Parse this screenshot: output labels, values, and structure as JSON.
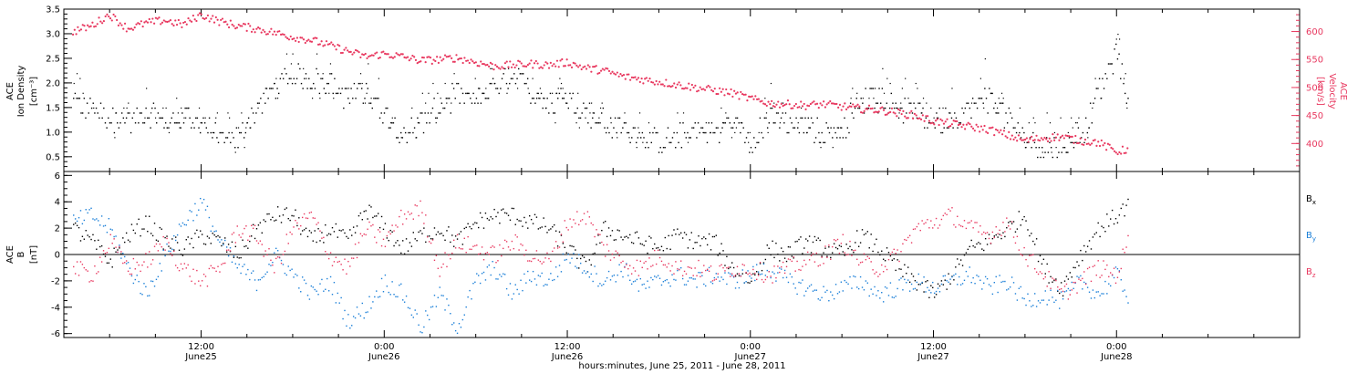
{
  "figure": {
    "xlabel": "hours:minutes, June 25, 2011 - June 28, 2011",
    "xticks": [
      {
        "day": 0.5,
        "time": "12:00",
        "date": "June25"
      },
      {
        "day": 1.0,
        "time": "0:00",
        "date": "June26"
      },
      {
        "day": 1.5,
        "time": "12:00",
        "date": "June26"
      },
      {
        "day": 2.0,
        "time": "0:00",
        "date": "June27"
      },
      {
        "day": 2.5,
        "time": "12:00",
        "date": "June27"
      },
      {
        "day": 3.0,
        "time": "0:00",
        "date": "June28"
      }
    ],
    "xlim_days": [
      0.125,
      3.5
    ]
  },
  "chart_data": [
    {
      "type": "scatter",
      "panel": "top",
      "ylabel": {
        "line1": "ACE",
        "line2": "Ion Density",
        "units": "[cm⁻³]"
      },
      "ylabel_right": {
        "line1": "ACE",
        "line2": "Velocity",
        "units": "[km/s]"
      },
      "ylim": [
        0.2,
        3.5
      ],
      "yticks": [
        0.5,
        1.0,
        1.5,
        2.0,
        2.5,
        3.0,
        3.5
      ],
      "yticks_labels": [
        "0.5",
        "1.0",
        "1.5",
        "2.0",
        "2.5",
        "3.0",
        "3.5"
      ],
      "y2lim": [
        350,
        640
      ],
      "y2ticks": [
        400,
        450,
        500,
        550,
        600
      ],
      "y2ticks_labels": [
        "400",
        "450",
        "500",
        "550",
        "600"
      ],
      "series": [
        {
          "name": "Ion Density",
          "axis": "left",
          "color": "#000000",
          "x": [
            0.15,
            0.2,
            0.25,
            0.3,
            0.35,
            0.4,
            0.45,
            0.5,
            0.55,
            0.6,
            0.65,
            0.7,
            0.75,
            0.8,
            0.85,
            0.9,
            0.95,
            1.0,
            1.05,
            1.1,
            1.15,
            1.2,
            1.25,
            1.3,
            1.35,
            1.4,
            1.45,
            1.5,
            1.55,
            1.6,
            1.65,
            1.7,
            1.75,
            1.8,
            1.85,
            1.9,
            1.95,
            2.0,
            2.05,
            2.1,
            2.15,
            2.2,
            2.25,
            2.3,
            2.35,
            2.4,
            2.45,
            2.5,
            2.55,
            2.6,
            2.65,
            2.7,
            2.75,
            2.8,
            2.85,
            2.9,
            2.95,
            3.0,
            3.03
          ],
          "y": [
            1.6,
            1.5,
            1.3,
            1.2,
            1.4,
            1.2,
            1.3,
            1.2,
            0.9,
            0.85,
            1.5,
            1.9,
            2.2,
            2.1,
            2.0,
            1.7,
            1.8,
            1.4,
            1.0,
            1.2,
            1.5,
            1.8,
            1.6,
            1.9,
            2.2,
            1.8,
            1.6,
            1.7,
            1.4,
            1.2,
            1.1,
            1.0,
            0.8,
            0.9,
            1.1,
            1.0,
            1.2,
            0.8,
            1.3,
            1.2,
            1.1,
            1.0,
            1.1,
            1.6,
            1.8,
            1.5,
            1.4,
            1.2,
            1.3,
            1.5,
            1.7,
            1.3,
            0.9,
            0.7,
            0.75,
            0.9,
            1.8,
            2.6,
            1.6
          ]
        },
        {
          "name": "Velocity",
          "axis": "right",
          "color": "#e8385f",
          "x": [
            0.15,
            0.2,
            0.25,
            0.3,
            0.35,
            0.4,
            0.45,
            0.5,
            0.55,
            0.6,
            0.65,
            0.7,
            0.75,
            0.8,
            0.85,
            0.9,
            0.95,
            1.0,
            1.05,
            1.1,
            1.15,
            1.2,
            1.25,
            1.3,
            1.35,
            1.4,
            1.45,
            1.5,
            1.55,
            1.6,
            1.65,
            1.7,
            1.75,
            1.8,
            1.85,
            1.9,
            1.95,
            2.0,
            2.05,
            2.1,
            2.15,
            2.2,
            2.25,
            2.3,
            2.35,
            2.4,
            2.45,
            2.5,
            2.55,
            2.6,
            2.65,
            2.7,
            2.75,
            2.8,
            2.85,
            2.9,
            2.95,
            3.0,
            3.03
          ],
          "y": [
            600,
            610,
            630,
            605,
            615,
            620,
            612,
            630,
            618,
            610,
            605,
            598,
            590,
            585,
            575,
            565,
            555,
            560,
            555,
            548,
            550,
            553,
            545,
            538,
            540,
            542,
            540,
            545,
            535,
            530,
            520,
            515,
            510,
            505,
            500,
            495,
            490,
            480,
            472,
            470,
            468,
            470,
            466,
            462,
            460,
            455,
            450,
            440,
            435,
            430,
            425,
            415,
            405,
            410,
            412,
            405,
            402,
            385,
            390
          ]
        }
      ]
    },
    {
      "type": "scatter",
      "panel": "bottom",
      "ylabel": {
        "line1": "ACE",
        "line2": "B",
        "units": "[nT]"
      },
      "ylim": [
        -6.3,
        6.3
      ],
      "yticks": [
        -6,
        -4,
        -2,
        0,
        2,
        4,
        6
      ],
      "yticks_labels": [
        "-6",
        "-4",
        "-2",
        "0",
        "2",
        "4",
        "6"
      ],
      "series": [
        {
          "name": "Bx",
          "color": "#000000",
          "x": [
            0.15,
            0.2,
            0.25,
            0.3,
            0.35,
            0.4,
            0.45,
            0.5,
            0.55,
            0.6,
            0.65,
            0.7,
            0.75,
            0.8,
            0.85,
            0.9,
            0.95,
            1.0,
            1.05,
            1.1,
            1.15,
            1.2,
            1.25,
            1.3,
            1.35,
            1.4,
            1.45,
            1.5,
            1.55,
            1.6,
            1.65,
            1.7,
            1.75,
            1.8,
            1.85,
            1.9,
            1.95,
            2.0,
            2.05,
            2.1,
            2.15,
            2.2,
            2.25,
            2.3,
            2.35,
            2.4,
            2.45,
            2.5,
            2.55,
            2.6,
            2.65,
            2.7,
            2.75,
            2.8,
            2.85,
            2.9,
            2.95,
            3.0,
            3.03
          ],
          "y": [
            2.0,
            1.0,
            -0.5,
            1.5,
            2.5,
            1.0,
            0.5,
            1.5,
            1.0,
            0.0,
            2.0,
            3.0,
            3.0,
            1.0,
            2.0,
            1.0,
            3.5,
            2.0,
            0.5,
            1.5,
            2.0,
            1.0,
            2.5,
            3.0,
            3.0,
            2.5,
            2.0,
            0.5,
            -1.0,
            2.0,
            1.5,
            1.0,
            0.5,
            1.5,
            1.0,
            1.0,
            -1.0,
            -2.0,
            0.5,
            0.0,
            1.0,
            0.5,
            0.0,
            1.5,
            0.5,
            -1.0,
            -2.0,
            -3.0,
            -1.5,
            0.5,
            1.0,
            2.0,
            3.0,
            -1.0,
            -2.5,
            0.0,
            2.0,
            3.0,
            3.8
          ]
        },
        {
          "name": "By",
          "color": "#1a7fd8",
          "x": [
            0.15,
            0.2,
            0.25,
            0.3,
            0.35,
            0.4,
            0.45,
            0.5,
            0.55,
            0.6,
            0.65,
            0.7,
            0.75,
            0.8,
            0.85,
            0.9,
            0.95,
            1.0,
            1.05,
            1.1,
            1.15,
            1.2,
            1.25,
            1.3,
            1.35,
            1.4,
            1.45,
            1.5,
            1.55,
            1.6,
            1.65,
            1.7,
            1.75,
            1.8,
            1.85,
            1.9,
            1.95,
            2.0,
            2.05,
            2.1,
            2.15,
            2.2,
            2.25,
            2.3,
            2.35,
            2.4,
            2.45,
            2.5,
            2.55,
            2.6,
            2.65,
            2.7,
            2.75,
            2.8,
            2.85,
            2.9,
            2.95,
            3.0,
            3.03
          ],
          "y": [
            2.5,
            3.0,
            2.0,
            -1.0,
            -3.0,
            0.0,
            2.5,
            4.0,
            1.0,
            -1.0,
            -2.0,
            0.0,
            -1.5,
            -3.0,
            -2.0,
            -5.0,
            -4.0,
            -2.0,
            -3.0,
            -5.5,
            -3.0,
            -5.5,
            -2.0,
            -1.0,
            -3.0,
            -1.5,
            -2.0,
            0.0,
            -1.0,
            -2.0,
            -1.0,
            -2.5,
            -2.0,
            -1.5,
            -2.0,
            -1.5,
            -2.0,
            -1.5,
            -1.0,
            -2.0,
            -2.5,
            -3.0,
            -2.5,
            -2.0,
            -3.0,
            -2.5,
            -2.0,
            -2.5,
            -2.0,
            -1.5,
            -2.5,
            -2.0,
            -3.5,
            -3.0,
            -3.5,
            -2.0,
            -3.0,
            -1.5,
            -3.0
          ]
        },
        {
          "name": "Bz",
          "color": "#e8385f",
          "x": [
            0.15,
            0.2,
            0.25,
            0.3,
            0.35,
            0.4,
            0.45,
            0.5,
            0.55,
            0.6,
            0.65,
            0.7,
            0.75,
            0.8,
            0.85,
            0.9,
            0.95,
            1.0,
            1.05,
            1.1,
            1.15,
            1.2,
            1.25,
            1.3,
            1.35,
            1.4,
            1.45,
            1.5,
            1.55,
            1.6,
            1.65,
            1.7,
            1.75,
            1.8,
            1.85,
            1.9,
            1.95,
            2.0,
            2.05,
            2.1,
            2.15,
            2.2,
            2.25,
            2.3,
            2.35,
            2.4,
            2.45,
            2.5,
            2.55,
            2.6,
            2.65,
            2.7,
            2.75,
            2.8,
            2.85,
            2.9,
            2.95,
            3.0,
            3.03
          ],
          "y": [
            -1.0,
            -1.5,
            1.0,
            -1.0,
            -0.5,
            1.0,
            -1.0,
            -2.0,
            -1.0,
            2.0,
            1.5,
            -1.0,
            2.0,
            3.0,
            0.0,
            -1.0,
            2.0,
            1.0,
            3.0,
            3.5,
            -1.0,
            1.0,
            0.5,
            0.0,
            1.0,
            0.0,
            -0.5,
            2.5,
            3.0,
            0.5,
            -0.5,
            -1.0,
            0.0,
            -1.0,
            -1.0,
            -1.5,
            -1.0,
            -1.0,
            -1.5,
            -1.0,
            -0.5,
            0.0,
            1.0,
            -0.5,
            -1.0,
            0.0,
            2.0,
            2.5,
            3.0,
            2.0,
            1.5,
            2.5,
            0.0,
            -1.5,
            -3.0,
            -2.0,
            -1.0,
            -1.5,
            1.0
          ]
        }
      ],
      "legend": {
        "placement": "right",
        "entries": [
          {
            "base": "B",
            "sub": "x"
          },
          {
            "base": "B",
            "sub": "y"
          },
          {
            "base": "B",
            "sub": "z"
          }
        ]
      }
    }
  ],
  "colors": {
    "axes": "#000000",
    "density": "#000000",
    "velocity": "#e8385f",
    "bx": "#000000",
    "by": "#1a7fd8",
    "bz": "#e8385f"
  }
}
